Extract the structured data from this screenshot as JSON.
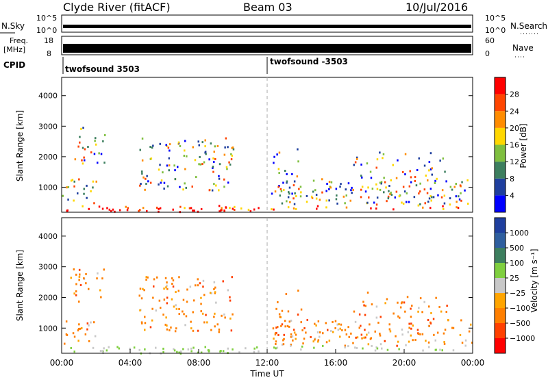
{
  "header": {
    "station": "Clyde River (fitACF)",
    "beam": "Beam 03",
    "date": "10/Jul/2016"
  },
  "nsky_panel": {
    "left_label": "N.Sky",
    "right_label": "N.Search",
    "ticks": [
      "10^5",
      "10^0"
    ],
    "right_ticks": [
      "10^5",
      "10^0"
    ]
  },
  "freq_panel": {
    "left_label_line1": "Freq.",
    "left_label_line2": "[MHz]",
    "right_label": "Nave",
    "left_ticks": [
      "18",
      "8"
    ],
    "right_ticks": [
      "60",
      "0"
    ]
  },
  "cpid_panel": {
    "label": "CPID",
    "segments": [
      {
        "label": "twofsound 3503",
        "start_hour": 0
      },
      {
        "label": "twofsound -3503",
        "start_hour": 12
      }
    ]
  },
  "colors": {
    "power_scale": [
      "#0000ff",
      "#1f3f9e",
      "#3d7f5f",
      "#7fbf3f",
      "#ffd700",
      "#ff8c00",
      "#ff4500",
      "#ff0000"
    ],
    "velocity_scale": [
      "#1f3f9e",
      "#2f5f9f",
      "#3d7f5f",
      "#7fcf3f",
      "#c8c8c8",
      "#ffa500",
      "#ff7f00",
      "#ff4000",
      "#ff0000"
    ]
  },
  "chart_data": [
    {
      "type": "heatmap",
      "title": "Power",
      "ylabel": "Slant Range [km]",
      "xlabel": "",
      "colorbar_label": "Power [dB]",
      "colorbar_ticks": [
        "4",
        "8",
        "12",
        "16",
        "20",
        "24",
        "28"
      ],
      "x_ticks": [],
      "y_ticks": [
        "1000",
        "2000",
        "3000",
        "4000"
      ],
      "ylim": [
        180,
        4600
      ],
      "xlim": [
        0,
        24
      ],
      "x_unit": "hours UT"
    },
    {
      "type": "heatmap",
      "title": "Velocity",
      "ylabel": "Slant Range [km]",
      "xlabel": "Time UT",
      "colorbar_label": "Velocity [m s⁻¹]",
      "colorbar_ticks": [
        "1000",
        "500",
        "100",
        "25",
        "−25",
        "−100",
        "−500",
        "−1000"
      ],
      "x_ticks": [
        "00:00",
        "04:00",
        "08:00",
        "12:00",
        "16:00",
        "20:00",
        "00:00"
      ],
      "y_ticks": [
        "1000",
        "2000",
        "3000",
        "4000"
      ],
      "ylim": [
        180,
        4600
      ],
      "xlim": [
        0,
        24
      ],
      "x_unit": "hours UT"
    }
  ]
}
